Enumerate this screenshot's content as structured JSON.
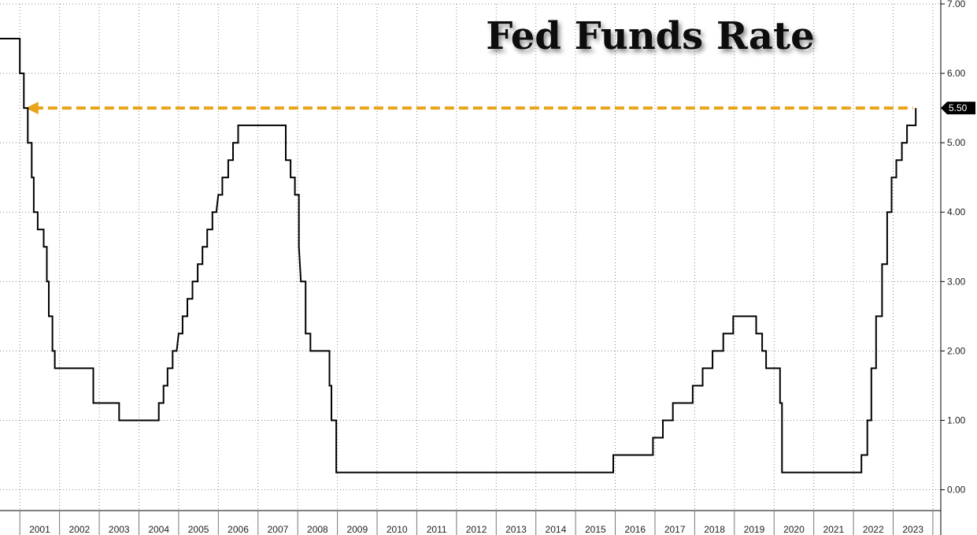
{
  "chart_data": {
    "type": "line",
    "title": "Fed Funds Rate",
    "xlabel": "",
    "ylabel": "",
    "x_range": [
      2000.5,
      2024.2
    ],
    "ylim": [
      -0.3,
      7.0
    ],
    "y_ticks": [
      "0.00",
      "1.00",
      "2.00",
      "3.00",
      "4.00",
      "5.00",
      "6.00",
      "7.00"
    ],
    "x_ticks": [
      "2001",
      "2002",
      "2003",
      "2004",
      "2005",
      "2006",
      "2007",
      "2008",
      "2009",
      "2010",
      "2011",
      "2012",
      "2013",
      "2014",
      "2015",
      "2016",
      "2017",
      "2018",
      "2019",
      "2020",
      "2021",
      "2022",
      "2023"
    ],
    "grid": true,
    "last_value": "5.50",
    "reference_line": {
      "value": 5.5,
      "color": "#E8A317",
      "style": "dashed-arrow"
    },
    "series": [
      {
        "color": "#000000",
        "points": [
          [
            2000.5,
            6.5
          ],
          [
            2001.0,
            6.5
          ],
          [
            2001.0,
            6.0
          ],
          [
            2001.1,
            6.0
          ],
          [
            2001.1,
            5.5
          ],
          [
            2001.2,
            5.5
          ],
          [
            2001.2,
            5.0
          ],
          [
            2001.3,
            5.0
          ],
          [
            2001.3,
            4.5
          ],
          [
            2001.35,
            4.5
          ],
          [
            2001.35,
            4.0
          ],
          [
            2001.45,
            4.0
          ],
          [
            2001.45,
            3.75
          ],
          [
            2001.6,
            3.75
          ],
          [
            2001.6,
            3.5
          ],
          [
            2001.68,
            3.5
          ],
          [
            2001.68,
            3.0
          ],
          [
            2001.73,
            3.0
          ],
          [
            2001.73,
            2.5
          ],
          [
            2001.82,
            2.5
          ],
          [
            2001.82,
            2.0
          ],
          [
            2001.88,
            2.0
          ],
          [
            2001.88,
            1.75
          ],
          [
            2002.85,
            1.75
          ],
          [
            2002.85,
            1.25
          ],
          [
            2003.5,
            1.25
          ],
          [
            2003.5,
            1.0
          ],
          [
            2004.5,
            1.0
          ],
          [
            2004.5,
            1.25
          ],
          [
            2004.62,
            1.25
          ],
          [
            2004.62,
            1.5
          ],
          [
            2004.72,
            1.5
          ],
          [
            2004.72,
            1.75
          ],
          [
            2004.85,
            1.75
          ],
          [
            2004.85,
            2.0
          ],
          [
            2004.95,
            2.0
          ],
          [
            2005.0,
            2.25
          ],
          [
            2005.1,
            2.25
          ],
          [
            2005.1,
            2.5
          ],
          [
            2005.22,
            2.5
          ],
          [
            2005.22,
            2.75
          ],
          [
            2005.35,
            2.75
          ],
          [
            2005.35,
            3.0
          ],
          [
            2005.48,
            3.0
          ],
          [
            2005.48,
            3.25
          ],
          [
            2005.6,
            3.25
          ],
          [
            2005.6,
            3.5
          ],
          [
            2005.72,
            3.5
          ],
          [
            2005.72,
            3.75
          ],
          [
            2005.85,
            3.75
          ],
          [
            2005.85,
            4.0
          ],
          [
            2005.95,
            4.0
          ],
          [
            2006.0,
            4.25
          ],
          [
            2006.1,
            4.25
          ],
          [
            2006.1,
            4.5
          ],
          [
            2006.25,
            4.5
          ],
          [
            2006.25,
            4.75
          ],
          [
            2006.37,
            4.75
          ],
          [
            2006.37,
            5.0
          ],
          [
            2006.5,
            5.0
          ],
          [
            2006.5,
            5.25
          ],
          [
            2007.7,
            5.25
          ],
          [
            2007.7,
            4.75
          ],
          [
            2007.82,
            4.75
          ],
          [
            2007.82,
            4.5
          ],
          [
            2007.93,
            4.5
          ],
          [
            2007.93,
            4.25
          ],
          [
            2008.03,
            4.25
          ],
          [
            2008.03,
            3.5
          ],
          [
            2008.08,
            3.0
          ],
          [
            2008.2,
            3.0
          ],
          [
            2008.2,
            2.25
          ],
          [
            2008.32,
            2.25
          ],
          [
            2008.32,
            2.0
          ],
          [
            2008.8,
            2.0
          ],
          [
            2008.8,
            1.5
          ],
          [
            2008.85,
            1.5
          ],
          [
            2008.85,
            1.0
          ],
          [
            2008.97,
            1.0
          ],
          [
            2008.97,
            0.25
          ],
          [
            2015.95,
            0.25
          ],
          [
            2015.95,
            0.5
          ],
          [
            2016.95,
            0.5
          ],
          [
            2016.95,
            0.75
          ],
          [
            2017.2,
            0.75
          ],
          [
            2017.2,
            1.0
          ],
          [
            2017.45,
            1.0
          ],
          [
            2017.45,
            1.25
          ],
          [
            2017.95,
            1.25
          ],
          [
            2017.95,
            1.5
          ],
          [
            2018.2,
            1.5
          ],
          [
            2018.2,
            1.75
          ],
          [
            2018.45,
            1.75
          ],
          [
            2018.45,
            2.0
          ],
          [
            2018.72,
            2.0
          ],
          [
            2018.72,
            2.25
          ],
          [
            2018.97,
            2.25
          ],
          [
            2018.97,
            2.5
          ],
          [
            2019.55,
            2.5
          ],
          [
            2019.55,
            2.25
          ],
          [
            2019.7,
            2.25
          ],
          [
            2019.7,
            2.0
          ],
          [
            2019.8,
            2.0
          ],
          [
            2019.8,
            1.75
          ],
          [
            2020.15,
            1.75
          ],
          [
            2020.15,
            1.25
          ],
          [
            2020.2,
            1.25
          ],
          [
            2020.2,
            0.25
          ],
          [
            2022.2,
            0.25
          ],
          [
            2022.2,
            0.5
          ],
          [
            2022.35,
            0.5
          ],
          [
            2022.35,
            1.0
          ],
          [
            2022.45,
            1.0
          ],
          [
            2022.45,
            1.75
          ],
          [
            2022.57,
            1.75
          ],
          [
            2022.57,
            2.5
          ],
          [
            2022.72,
            2.5
          ],
          [
            2022.72,
            3.25
          ],
          [
            2022.85,
            3.25
          ],
          [
            2022.85,
            4.0
          ],
          [
            2022.96,
            4.0
          ],
          [
            2022.96,
            4.5
          ],
          [
            2023.08,
            4.5
          ],
          [
            2023.08,
            4.75
          ],
          [
            2023.22,
            4.75
          ],
          [
            2023.22,
            5.0
          ],
          [
            2023.35,
            5.0
          ],
          [
            2023.35,
            5.25
          ],
          [
            2023.57,
            5.25
          ],
          [
            2023.57,
            5.5
          ]
        ]
      }
    ]
  }
}
